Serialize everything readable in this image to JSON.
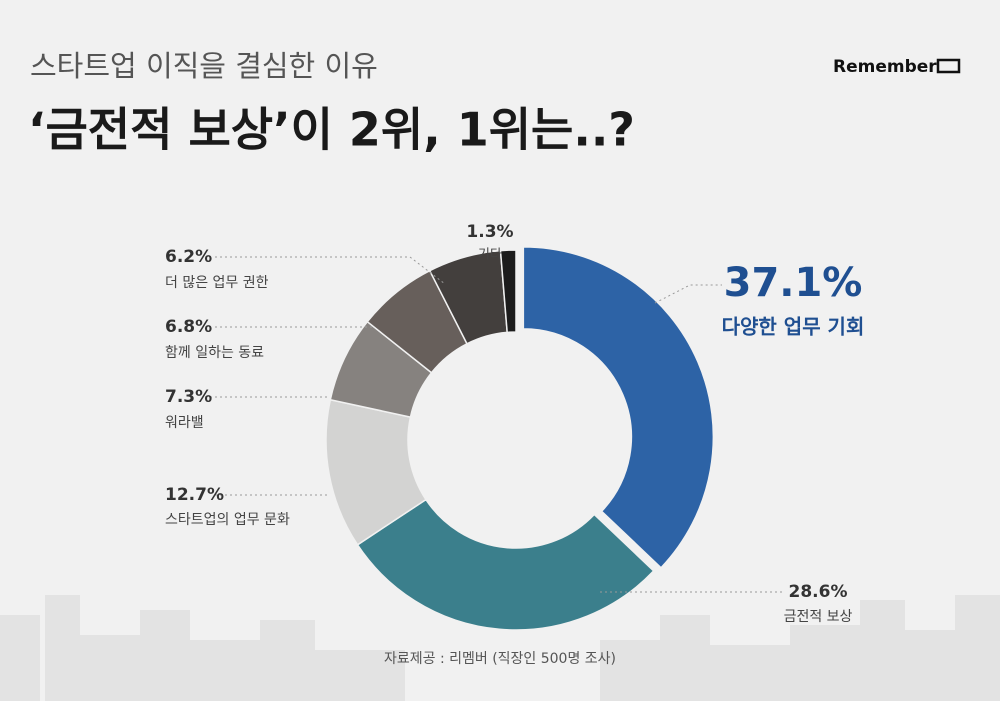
{
  "chart_data": {
    "type": "donut",
    "subtitle": "스타트업 이직을 결심한 이유",
    "title": "‘금전적 보상’이 2위, 1위는..?",
    "brand": "Remember",
    "source": "자료제공 : 리멤버 (직장인 500명 조사)",
    "categories": [
      "다양한 업무 기회",
      "금전적 보상",
      "스타트업의 업무 문화",
      "워라밸",
      "함께 일하는 동료",
      "더 많은 업무 권한",
      "기타"
    ],
    "values": [
      37.1,
      28.6,
      12.7,
      7.3,
      6.8,
      6.2,
      1.3
    ],
    "value_labels": [
      "37.1%",
      "28.6%",
      "12.7%",
      "7.3%",
      "6.8%",
      "6.2%",
      "1.3%"
    ],
    "colors": [
      "#2d63a6",
      "#3b7f8c",
      "#d3d3d2",
      "#86827f",
      "#675f5b",
      "#433f3d",
      "#1c1c1c"
    ]
  }
}
